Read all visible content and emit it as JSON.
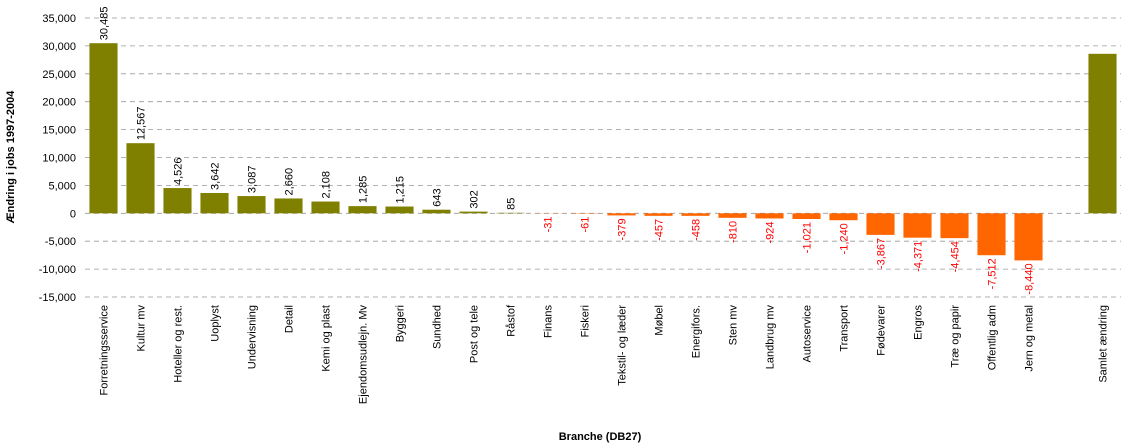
{
  "chart_data": {
    "type": "bar",
    "xlabel": "Branche (DB27)",
    "ylabel": "Ændring i jobs 1997-2004",
    "categories": [
      "Forretningsservice",
      "Kultur mv",
      "Hoteller og rest.",
      "Uoplyst",
      "Undervisning",
      "Detail",
      "Kemi og plast",
      "Ejendomsudlejn. Mv",
      "Byggeri",
      "Sundhed",
      "Post og tele",
      "Råstof",
      "Finans",
      "Fiskeri",
      "Tekstil- og læder",
      "Møbel",
      "Energifors.",
      "Sten mv",
      "Landbrug mv",
      "Autoservice",
      "Transport",
      "Fødevarer",
      "Engros",
      "Træ og papir",
      "Offentlig adm",
      "Jern og metal",
      null,
      "Samlet ændring"
    ],
    "values": [
      30485,
      12567,
      4526,
      3642,
      3087,
      2660,
      2108,
      1285,
      1215,
      643,
      302,
      85,
      -31,
      -61,
      -379,
      -457,
      -458,
      -810,
      -924,
      -1021,
      -1240,
      -3867,
      -4371,
      -4454,
      -7512,
      -8440,
      null,
      28580
    ],
    "value_labels": [
      "30,485",
      "12,567",
      "4,526",
      "3,642",
      "3,087",
      "2,660",
      "2,108",
      "1,285",
      "1,215",
      "643",
      "302",
      "85",
      "-31",
      "-61",
      "-379",
      "-457",
      "-458",
      "-810",
      "-924",
      "-1,021",
      "-1,240",
      "-3,867",
      "-4,371",
      "-4,454",
      "-7,512",
      "-8,440",
      null,
      null
    ],
    "color_positive": "#808000",
    "color_negative": "#ff6600",
    "label_color_positive": "#000000",
    "label_color_negative": "#ff0000",
    "ylim": [
      -15000,
      35000
    ],
    "yticks": [
      {
        "value": -15000,
        "label": "-15,000"
      },
      {
        "value": -10000,
        "label": "-10,000"
      },
      {
        "value": -5000,
        "label": "-5,000"
      },
      0,
      {
        "value": 5000,
        "label": "5,000"
      },
      {
        "value": 10000,
        "label": "10,000"
      },
      {
        "value": 15000,
        "label": "15,000"
      },
      {
        "value": 20000,
        "label": "20,000"
      },
      {
        "value": 25000,
        "label": "25,000"
      },
      {
        "value": 30000,
        "label": "30,000"
      },
      {
        "value": 35000,
        "label": "35,000"
      }
    ],
    "grid": true
  }
}
